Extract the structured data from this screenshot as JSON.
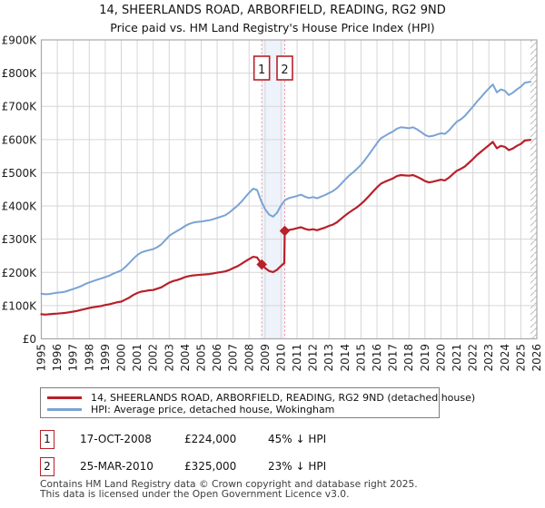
{
  "title": {
    "line1": "14, SHEERLANDS ROAD, ARBORFIELD, READING, RG2 9ND",
    "line2": "Price paid vs. HM Land Registry's House Price Index (HPI)"
  },
  "legend": {
    "property": "14, SHEERLANDS ROAD, ARBORFIELD, READING, RG2 9ND (detached house)",
    "hpi": "HPI: Average price, detached house, Wokingham"
  },
  "sales": [
    {
      "label": "1",
      "date": "17-OCT-2008",
      "price": "£224,000",
      "vs_hpi": "45% ↓ HPI",
      "year_decimal": 2008.79,
      "price_k": 224
    },
    {
      "label": "2",
      "date": "25-MAR-2010",
      "price": "£325,000",
      "vs_hpi": "23% ↓ HPI",
      "year_decimal": 2010.23,
      "price_k": 325
    }
  ],
  "footer": {
    "line1": "Contains HM Land Registry data © Crown copyright and database right 2025.",
    "line2": "This data is licensed under the Open Government Licence v3.0."
  },
  "chart_data": {
    "type": "line",
    "title": "14, SHEERLANDS ROAD, ARBORFIELD, READING, RG2 9ND — Price paid vs. HPI",
    "xlabel": "",
    "ylabel": "",
    "grid": true,
    "legend_position": "bottom",
    "units": "GBP thousands",
    "x_axis": {
      "min": 1995,
      "max": 2026,
      "labels": [
        "1995",
        "1996",
        "1997",
        "1998",
        "1999",
        "2000",
        "2001",
        "2002",
        "2003",
        "2004",
        "2005",
        "2006",
        "2007",
        "2008",
        "2009",
        "2010",
        "2011",
        "2012",
        "2013",
        "2014",
        "2015",
        "2016",
        "2017",
        "2018",
        "2019",
        "2020",
        "2021",
        "2022",
        "2023",
        "2024",
        "2025",
        "2026"
      ]
    },
    "y_axis": {
      "max_k": 900,
      "labels": [
        "£0",
        "£100K",
        "£200K",
        "£300K",
        "£400K",
        "£500K",
        "£600K",
        "£700K",
        "£800K",
        "£900K"
      ]
    },
    "hatch_start": 2025.6,
    "band_color": "#eef2fb",
    "event_line_color": "#f09098",
    "event_box_color": "#b8202a",
    "grid_color": "#d6d6d6",
    "border_color": "#a8a8a8",
    "hatch_color": "#bdbdbd",
    "series": [
      {
        "name": "14, SHEERLANDS ROAD, ARBORFIELD, READING, RG2 9ND (detached house)",
        "color": "#b8202a",
        "width": 2.2,
        "points": [
          [
            1995,
            74
          ],
          [
            1995.25,
            73
          ],
          [
            1995.5,
            74
          ],
          [
            1995.75,
            75
          ],
          [
            1996,
            76
          ],
          [
            1996.25,
            77
          ],
          [
            1996.5,
            78
          ],
          [
            1996.75,
            80
          ],
          [
            1997,
            82
          ],
          [
            1997.25,
            84
          ],
          [
            1997.5,
            87
          ],
          [
            1997.75,
            90
          ],
          [
            1998,
            93
          ],
          [
            1998.25,
            95
          ],
          [
            1998.5,
            97
          ],
          [
            1998.75,
            99
          ],
          [
            1999,
            102
          ],
          [
            1999.25,
            104
          ],
          [
            1999.5,
            107
          ],
          [
            1999.75,
            110
          ],
          [
            2000,
            112
          ],
          [
            2000.25,
            118
          ],
          [
            2000.5,
            124
          ],
          [
            2000.75,
            132
          ],
          [
            2001,
            138
          ],
          [
            2001.25,
            142
          ],
          [
            2001.5,
            144
          ],
          [
            2001.75,
            146
          ],
          [
            2002,
            147
          ],
          [
            2002.25,
            151
          ],
          [
            2002.5,
            155
          ],
          [
            2002.75,
            162
          ],
          [
            2003,
            169
          ],
          [
            2003.25,
            174
          ],
          [
            2003.5,
            177
          ],
          [
            2003.75,
            181
          ],
          [
            2004,
            186
          ],
          [
            2004.25,
            189
          ],
          [
            2004.5,
            191
          ],
          [
            2004.75,
            192
          ],
          [
            2005,
            193
          ],
          [
            2005.25,
            194
          ],
          [
            2005.5,
            195
          ],
          [
            2005.75,
            197
          ],
          [
            2006,
            199
          ],
          [
            2006.25,
            201
          ],
          [
            2006.5,
            203
          ],
          [
            2006.75,
            207
          ],
          [
            2007,
            213
          ],
          [
            2007.25,
            218
          ],
          [
            2007.5,
            225
          ],
          [
            2007.75,
            233
          ],
          [
            2008,
            240
          ],
          [
            2008.25,
            247
          ],
          [
            2008.5,
            245
          ],
          [
            2008.79,
            224
          ],
          [
            2009,
            213
          ],
          [
            2009.25,
            204
          ],
          [
            2009.5,
            201
          ],
          [
            2009.75,
            208
          ],
          [
            2010,
            220
          ],
          [
            2010.2,
            228
          ],
          [
            2010.23,
            325
          ],
          [
            2010.5,
            328
          ],
          [
            2010.75,
            330
          ],
          [
            2011,
            333
          ],
          [
            2011.25,
            336
          ],
          [
            2011.5,
            331
          ],
          [
            2011.75,
            328
          ],
          [
            2012,
            330
          ],
          [
            2012.25,
            327
          ],
          [
            2012.5,
            331
          ],
          [
            2012.75,
            335
          ],
          [
            2013,
            340
          ],
          [
            2013.25,
            344
          ],
          [
            2013.5,
            351
          ],
          [
            2013.75,
            361
          ],
          [
            2014,
            371
          ],
          [
            2014.25,
            380
          ],
          [
            2014.5,
            388
          ],
          [
            2014.75,
            396
          ],
          [
            2015,
            406
          ],
          [
            2015.25,
            417
          ],
          [
            2015.5,
            430
          ],
          [
            2015.75,
            443
          ],
          [
            2016,
            456
          ],
          [
            2016.25,
            467
          ],
          [
            2016.5,
            473
          ],
          [
            2016.75,
            478
          ],
          [
            2017,
            483
          ],
          [
            2017.25,
            490
          ],
          [
            2017.5,
            493
          ],
          [
            2017.75,
            492
          ],
          [
            2018,
            491
          ],
          [
            2018.25,
            493
          ],
          [
            2018.5,
            488
          ],
          [
            2018.75,
            482
          ],
          [
            2019,
            475
          ],
          [
            2019.25,
            471
          ],
          [
            2019.5,
            473
          ],
          [
            2019.75,
            476
          ],
          [
            2020,
            479
          ],
          [
            2020.25,
            477
          ],
          [
            2020.5,
            485
          ],
          [
            2020.75,
            496
          ],
          [
            2021,
            506
          ],
          [
            2021.25,
            512
          ],
          [
            2021.5,
            519
          ],
          [
            2021.75,
            530
          ],
          [
            2022,
            541
          ],
          [
            2022.25,
            553
          ],
          [
            2022.5,
            563
          ],
          [
            2022.75,
            573
          ],
          [
            2023,
            583
          ],
          [
            2023.25,
            593
          ],
          [
            2023.5,
            574
          ],
          [
            2023.75,
            581
          ],
          [
            2024,
            578
          ],
          [
            2024.25,
            568
          ],
          [
            2024.5,
            573
          ],
          [
            2024.75,
            581
          ],
          [
            2025,
            587
          ],
          [
            2025.25,
            597
          ],
          [
            2025.6,
            599
          ]
        ]
      },
      {
        "name": "HPI: Average price, detached house, Wokingham",
        "color": "#7aa3d4",
        "width": 2,
        "points": [
          [
            1995,
            136
          ],
          [
            1995.25,
            134
          ],
          [
            1995.5,
            135
          ],
          [
            1995.75,
            137
          ],
          [
            1996,
            139
          ],
          [
            1996.25,
            140
          ],
          [
            1996.5,
            142
          ],
          [
            1996.75,
            146
          ],
          [
            1997,
            150
          ],
          [
            1997.25,
            154
          ],
          [
            1997.5,
            159
          ],
          [
            1997.75,
            165
          ],
          [
            1998,
            170
          ],
          [
            1998.25,
            174
          ],
          [
            1998.5,
            178
          ],
          [
            1998.75,
            182
          ],
          [
            1999,
            186
          ],
          [
            1999.25,
            190
          ],
          [
            1999.5,
            196
          ],
          [
            1999.75,
            201
          ],
          [
            2000,
            206
          ],
          [
            2000.25,
            216
          ],
          [
            2000.5,
            228
          ],
          [
            2000.75,
            241
          ],
          [
            2001,
            252
          ],
          [
            2001.25,
            260
          ],
          [
            2001.5,
            264
          ],
          [
            2001.75,
            267
          ],
          [
            2002,
            270
          ],
          [
            2002.25,
            276
          ],
          [
            2002.5,
            284
          ],
          [
            2002.75,
            297
          ],
          [
            2003,
            310
          ],
          [
            2003.25,
            318
          ],
          [
            2003.5,
            325
          ],
          [
            2003.75,
            332
          ],
          [
            2004,
            340
          ],
          [
            2004.25,
            346
          ],
          [
            2004.5,
            350
          ],
          [
            2004.75,
            352
          ],
          [
            2005,
            353
          ],
          [
            2005.25,
            355
          ],
          [
            2005.5,
            357
          ],
          [
            2005.75,
            360
          ],
          [
            2006,
            364
          ],
          [
            2006.25,
            368
          ],
          [
            2006.5,
            372
          ],
          [
            2006.75,
            380
          ],
          [
            2007,
            390
          ],
          [
            2007.25,
            400
          ],
          [
            2007.5,
            412
          ],
          [
            2007.75,
            426
          ],
          [
            2008,
            440
          ],
          [
            2008.25,
            452
          ],
          [
            2008.5,
            448
          ],
          [
            2008.75,
            415
          ],
          [
            2009,
            390
          ],
          [
            2009.25,
            374
          ],
          [
            2009.5,
            368
          ],
          [
            2009.75,
            380
          ],
          [
            2010,
            402
          ],
          [
            2010.25,
            418
          ],
          [
            2010.5,
            424
          ],
          [
            2010.75,
            427
          ],
          [
            2011,
            430
          ],
          [
            2011.25,
            434
          ],
          [
            2011.5,
            428
          ],
          [
            2011.75,
            424
          ],
          [
            2012,
            427
          ],
          [
            2012.25,
            423
          ],
          [
            2012.5,
            428
          ],
          [
            2012.75,
            433
          ],
          [
            2013,
            439
          ],
          [
            2013.25,
            445
          ],
          [
            2013.5,
            454
          ],
          [
            2013.75,
            466
          ],
          [
            2014,
            479
          ],
          [
            2014.25,
            491
          ],
          [
            2014.5,
            501
          ],
          [
            2014.75,
            512
          ],
          [
            2015,
            524
          ],
          [
            2015.25,
            539
          ],
          [
            2015.5,
            555
          ],
          [
            2015.75,
            572
          ],
          [
            2016,
            589
          ],
          [
            2016.25,
            604
          ],
          [
            2016.5,
            611
          ],
          [
            2016.75,
            618
          ],
          [
            2017,
            624
          ],
          [
            2017.25,
            633
          ],
          [
            2017.5,
            637
          ],
          [
            2017.75,
            636
          ],
          [
            2018,
            634
          ],
          [
            2018.25,
            637
          ],
          [
            2018.5,
            631
          ],
          [
            2018.75,
            623
          ],
          [
            2019,
            614
          ],
          [
            2019.25,
            609
          ],
          [
            2019.5,
            611
          ],
          [
            2019.75,
            615
          ],
          [
            2020,
            619
          ],
          [
            2020.25,
            617
          ],
          [
            2020.5,
            627
          ],
          [
            2020.75,
            641
          ],
          [
            2021,
            654
          ],
          [
            2021.25,
            661
          ],
          [
            2021.5,
            671
          ],
          [
            2021.75,
            685
          ],
          [
            2022,
            699
          ],
          [
            2022.25,
            714
          ],
          [
            2022.5,
            727
          ],
          [
            2022.75,
            741
          ],
          [
            2023,
            754
          ],
          [
            2023.25,
            766
          ],
          [
            2023.5,
            742
          ],
          [
            2023.75,
            751
          ],
          [
            2024,
            747
          ],
          [
            2024.25,
            734
          ],
          [
            2024.5,
            741
          ],
          [
            2024.75,
            751
          ],
          [
            2025,
            759
          ],
          [
            2025.25,
            771
          ],
          [
            2025.6,
            774
          ]
        ]
      }
    ]
  }
}
